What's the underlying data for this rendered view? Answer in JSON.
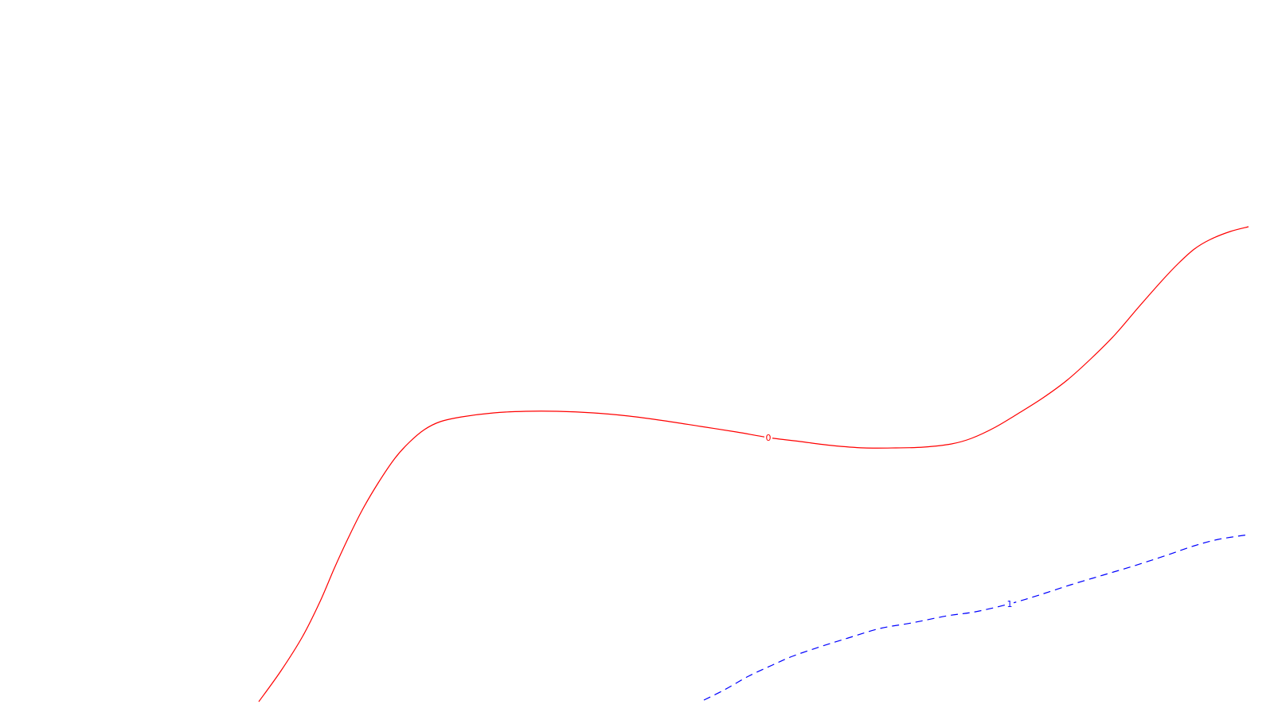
{
  "chart_data": {
    "type": "line",
    "title": "",
    "xlabel": "",
    "ylabel": "",
    "grid": false,
    "series": [
      {
        "label": "0",
        "color": "#ff0000",
        "dash": "solid",
        "points": [
          [
            325,
            882
          ],
          [
            353,
            843
          ],
          [
            380,
            800
          ],
          [
            402,
            756
          ],
          [
            420,
            714
          ],
          [
            437,
            677
          ],
          [
            455,
            641
          ],
          [
            475,
            607
          ],
          [
            496,
            576
          ],
          [
            514,
            556
          ],
          [
            533,
            540
          ],
          [
            553,
            530
          ],
          [
            580,
            524
          ],
          [
            620,
            519
          ],
          [
            660,
            517
          ],
          [
            700,
            517
          ],
          [
            745,
            519
          ],
          [
            790,
            523
          ],
          [
            835,
            529
          ],
          [
            880,
            536
          ],
          [
            925,
            543
          ],
          [
            965,
            550
          ],
          [
            1005,
            555
          ],
          [
            1045,
            560
          ],
          [
            1085,
            563
          ],
          [
            1125,
            563
          ],
          [
            1160,
            562
          ],
          [
            1195,
            558
          ],
          [
            1220,
            551
          ],
          [
            1250,
            537
          ],
          [
            1280,
            519
          ],
          [
            1310,
            500
          ],
          [
            1340,
            478
          ],
          [
            1370,
            451
          ],
          [
            1400,
            421
          ],
          [
            1430,
            386
          ],
          [
            1460,
            352
          ],
          [
            1480,
            331
          ],
          [
            1500,
            313
          ],
          [
            1520,
            301
          ],
          [
            1545,
            291
          ],
          [
            1568,
            285
          ]
        ],
        "label_position": [
          965,
          550
        ]
      },
      {
        "label": "1",
        "color": "#0000ff",
        "dash": "dashed",
        "points": [
          [
            884,
            880
          ],
          [
            910,
            867
          ],
          [
            940,
            850
          ],
          [
            970,
            836
          ],
          [
            995,
            825
          ],
          [
            1030,
            813
          ],
          [
            1065,
            802
          ],
          [
            1105,
            790
          ],
          [
            1145,
            783
          ],
          [
            1190,
            774
          ],
          [
            1225,
            769
          ],
          [
            1268,
            759
          ],
          [
            1305,
            748
          ],
          [
            1345,
            735
          ],
          [
            1385,
            723
          ],
          [
            1425,
            711
          ],
          [
            1465,
            698
          ],
          [
            1500,
            686
          ],
          [
            1530,
            678
          ],
          [
            1568,
            672
          ]
        ],
        "label_position": [
          1268,
          759
        ]
      }
    ]
  }
}
